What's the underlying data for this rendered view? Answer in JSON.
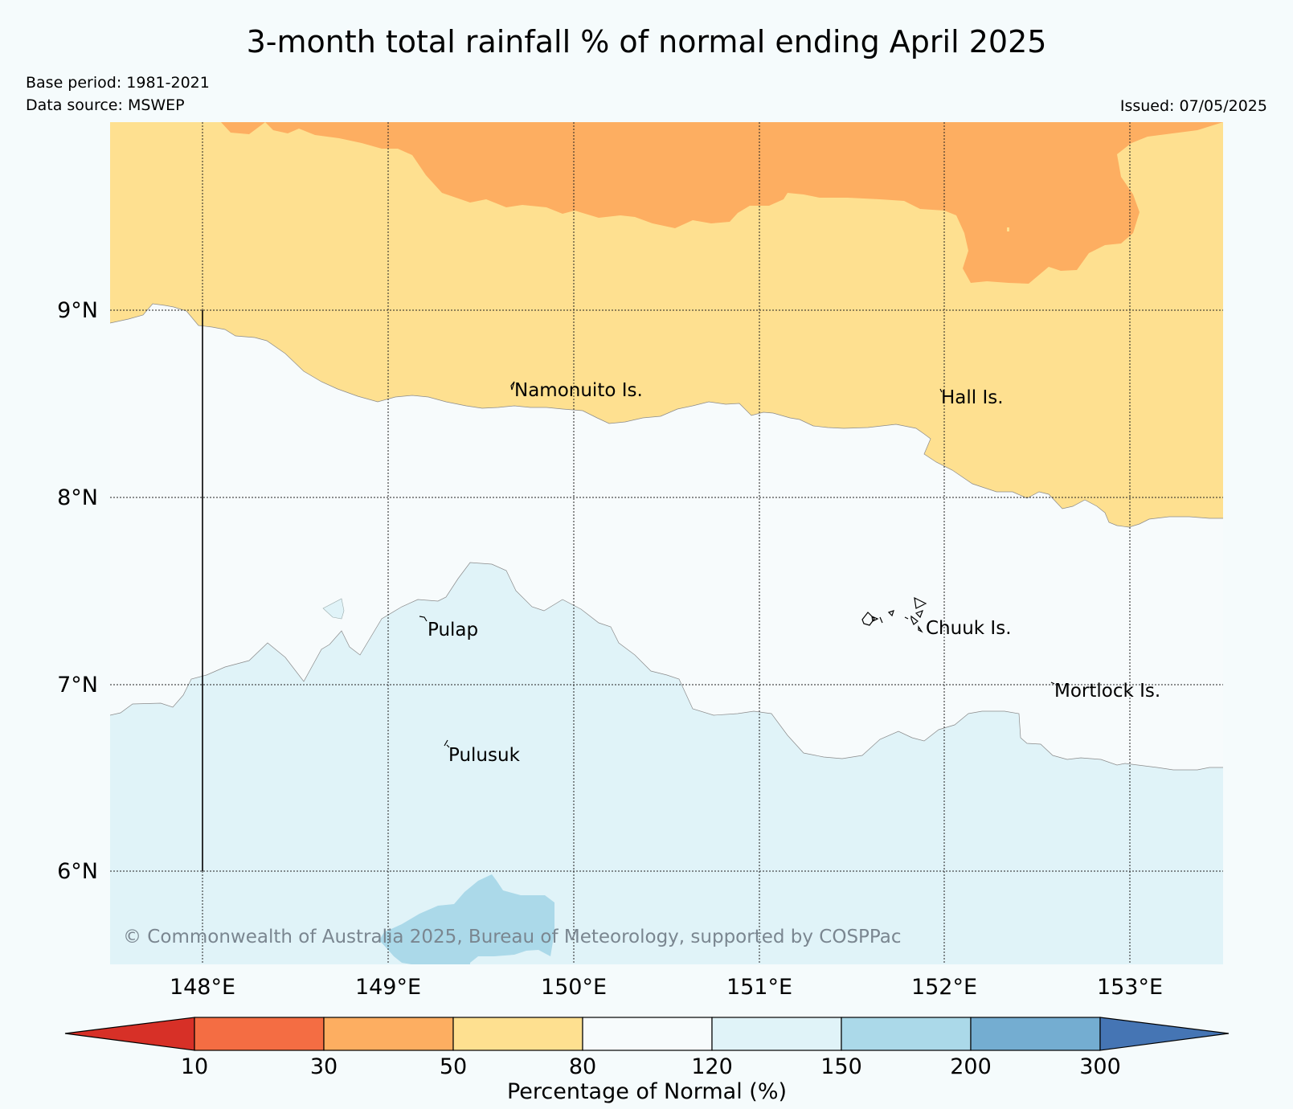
{
  "title": "3-month total rainfall % of normal ending April 2025",
  "base_period": "Base period: 1981-2021",
  "data_source": "Data source: MSWEP",
  "issued": "Issued: 07/05/2025",
  "copyright": "© Commonwealth of Australia 2025, Bureau of Meteorology, supported by COSPPac",
  "map": {
    "lat_labels": [
      "9°N",
      "8°N",
      "7°N",
      "6°N"
    ],
    "lon_labels": [
      "148°E",
      "149°E",
      "150°E",
      "151°E",
      "152°E",
      "153°E"
    ],
    "places": [
      {
        "name": "Namonuito Is."
      },
      {
        "name": "Hall Is."
      },
      {
        "name": "Pulap"
      },
      {
        "name": "Chuuk Is."
      },
      {
        "name": "Mortlock Is."
      },
      {
        "name": "Pulusuk"
      }
    ]
  },
  "legend": {
    "title": "Percentage of Normal (%)",
    "ticks": [
      "10",
      "30",
      "50",
      "80",
      "120",
      "150",
      "200",
      "300"
    ],
    "colors": [
      "#d73027",
      "#f46d43",
      "#fdae61",
      "#fee090",
      "#f7fbfc",
      "#e0f3f8",
      "#abd9e9",
      "#74add1",
      "#4575b4"
    ]
  },
  "colors": {
    "below_30_50": "#fdae61",
    "below_50_80": "#fee090",
    "normal_80_120": "#f7fbfc",
    "above_120_150": "#e0f3f8",
    "above_150_200": "#abd9e9"
  }
}
